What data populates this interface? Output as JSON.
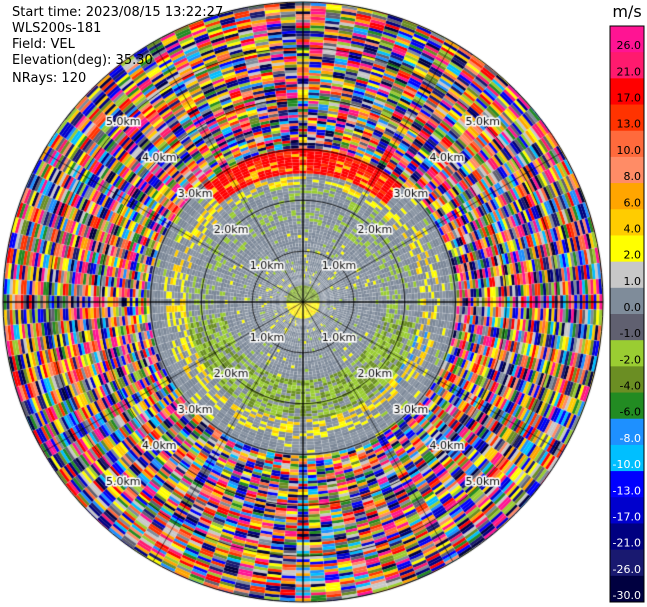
{
  "header": {
    "start_time": "Start time: 2023/08/15 13:22:27",
    "instrument": "WLS200s-181",
    "field": "Field: VEL",
    "elevation": "Elevation(deg): 35.30",
    "nrays": "NRays: 120"
  },
  "chart_data": {
    "type": "heatmap",
    "projection": "polar-ppi",
    "field": "VEL",
    "units": "m/s",
    "n_rays": 120,
    "range_rings_km": [
      1.0,
      2.0,
      3.0,
      4.0,
      5.0
    ],
    "range_ring_labels": [
      "1.0km",
      "2.0km",
      "3.0km",
      "4.0km",
      "5.0km"
    ],
    "max_range_km": 5.9,
    "spokes_deg": [
      0,
      30,
      60,
      90,
      120,
      150,
      180,
      210,
      240,
      270,
      300,
      330
    ],
    "colorbar": {
      "label": "m/s",
      "ticks": [
        "26.0",
        "21.0",
        "17.0",
        "13.0",
        "10.0",
        "8.0",
        "6.0",
        "4.0",
        "2.0",
        "1.0",
        "0.0",
        "-1.0",
        "-2.0",
        "-4.0",
        "-6.0",
        "-8.0",
        "-10.0",
        "-13.0",
        "-17.0",
        "-21.0",
        "-26.0",
        "-30.0"
      ],
      "colors": [
        "#ff1493",
        "#ff1a6e",
        "#ff0000",
        "#ff3300",
        "#ff6a3c",
        "#ff8c66",
        "#ffa500",
        "#ffcc00",
        "#ffff00",
        "#c8c8c8",
        "#7f8c9a",
        "#606070",
        "#9acd32",
        "#6b8e23",
        "#228b22",
        "#1e90ff",
        "#00bfff",
        "#0000ff",
        "#0000cd",
        "#000080",
        "#191970",
        "#000040"
      ]
    },
    "value_pattern": {
      "inner_gray_km": 1.35,
      "inner_near_center_green_yellow": true,
      "mid_gray_km": 2.6,
      "red_arc_north_km": [
        2.55,
        3.1
      ],
      "green_ring_south_km": [
        1.55,
        2.3
      ],
      "outer_noise_beyond_km": 3.0
    }
  }
}
